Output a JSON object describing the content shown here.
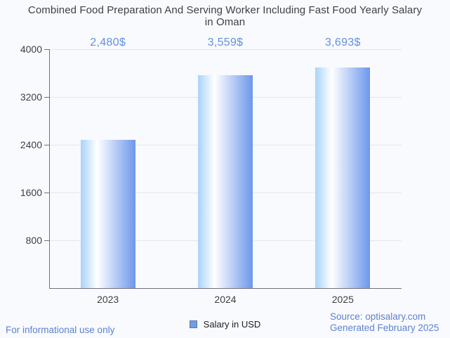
{
  "header": {
    "title_line1": "Combined Food Preparation And Serving Worker Including Fast Food Yearly Salary",
    "title_line2": "in Oman"
  },
  "chart_data": {
    "type": "bar",
    "title": "Combined Food Preparation And Serving Worker Including Fast Food Yearly Salary in Oman",
    "categories": [
      "2023",
      "2024",
      "2025"
    ],
    "series": [
      {
        "name": "Salary in USD",
        "values": [
          2480,
          3559,
          3693
        ]
      }
    ],
    "value_labels": [
      "2,480$",
      "3,559$",
      "3,693$"
    ],
    "xlabel": "",
    "ylabel": "",
    "ylim": [
      0,
      4000
    ],
    "yticks": [
      800,
      1600,
      2400,
      3200,
      4000
    ],
    "grid": true,
    "legend_position": "bottom"
  },
  "legend": {
    "label": "Salary in USD"
  },
  "footer": {
    "disclaimer": "For informational use only",
    "source": "Source: optisalary.com",
    "generated": "Generated February 2025"
  },
  "colors": {
    "background": "#f9fafd",
    "title_text": "#3f4045",
    "axis_text": "#3f4045",
    "gridline": "#e4e6ea",
    "axis_line": "#70707a",
    "annotation_text": "#6191db",
    "bar_gradient_left": "#a8d3fa",
    "bar_gradient_mid": "#ffffff",
    "bar_gradient_right": "#6d97ec",
    "legend_fill": "#6d9eeb",
    "legend_border": "#5a759e",
    "footer_text": "#5d82d1"
  }
}
